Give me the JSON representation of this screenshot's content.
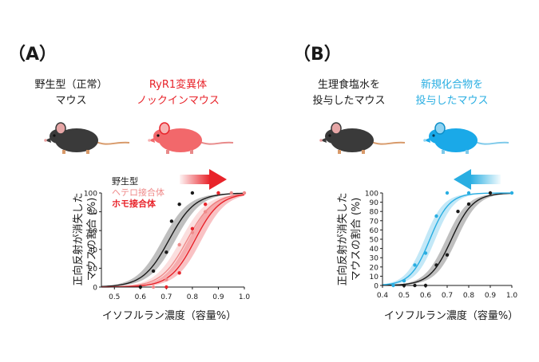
{
  "colors": {
    "wildtype": "#1a1a1a",
    "ryr1_label": "#e8232a",
    "hetero": "#ef8a8a",
    "homo": "#e8232a",
    "saline": "#1a1a1a",
    "compound": "#29aee2",
    "compound_fill": "#bfe3f3",
    "mouse_black": "#3a3a3a",
    "mouse_red": "#f2686b",
    "mouse_blue": "#1aa9e8",
    "arrow_red": "#e8232a",
    "arrow_blue": "#29aee2"
  },
  "panels": {
    "A": {
      "letter": "（A）",
      "mouse1_line1": "野生型（正常）",
      "mouse1_line2": "マウス",
      "mouse2_line1": "RyR1変異体",
      "mouse2_line2": "ノックインマウス",
      "icons": {
        "mouse1": "black-mouse-icon",
        "mouse2": "red-mouse-icon",
        "arrow": "right-arrow-icon"
      },
      "legend": [
        "野生型",
        "ヘテロ接合体",
        "ホモ接合体"
      ],
      "ylabel_line1": "正向反射が消失した",
      "ylabel_line2": "マウスの割合 (%)",
      "xlabel": "イソフルラン濃度（容量%）"
    },
    "B": {
      "letter": "（B）",
      "mouse1_line1": "生理食塩水を",
      "mouse1_line2": "投与したマウス",
      "mouse2_line1": "新規化合物を",
      "mouse2_line2": "投与したマウス",
      "icons": {
        "mouse1": "black-mouse-icon",
        "mouse2": "blue-mouse-icon",
        "arrow": "left-arrow-icon"
      },
      "ylabel_line1": "正向反射が消失した",
      "ylabel_line2": "マウスの割合 (%)",
      "xlabel": "イソフルラン濃度（容量%）"
    }
  },
  "chart_data": [
    {
      "type": "scatter",
      "panel": "A",
      "xlabel": "イソフルラン濃度（容量%）",
      "ylabel": "正向反射が消失したマウスの割合 (%)",
      "xlim": [
        0.45,
        1.0
      ],
      "ylim": [
        0,
        100
      ],
      "xticks": [
        0.5,
        0.6,
        0.7,
        0.8,
        0.9,
        1.0
      ],
      "xtick_labels": [
        "0.5",
        "0.6",
        "0.7",
        "0.8",
        "0.9",
        "1.0"
      ],
      "yticks": [
        0,
        20,
        40,
        60,
        80,
        100
      ],
      "ytick_labels": [
        "0",
        "20",
        "40",
        "60",
        "80",
        "100"
      ],
      "series": [
        {
          "name": "野生型",
          "color": "#1a1a1a",
          "ec50": 0.71,
          "slope": 0.05,
          "band": true,
          "points": [
            [
              0.6,
              0
            ],
            [
              0.65,
              17
            ],
            [
              0.7,
              37
            ],
            [
              0.72,
              70
            ],
            [
              0.75,
              88
            ],
            [
              0.8,
              100
            ]
          ]
        },
        {
          "name": "ヘテロ接合体",
          "color": "#ef8a8a",
          "ec50": 0.78,
          "slope": 0.05,
          "band": true,
          "points": [
            [
              0.65,
              0
            ],
            [
              0.7,
              8
            ],
            [
              0.75,
              45
            ],
            [
              0.8,
              58
            ],
            [
              0.85,
              80
            ],
            [
              0.9,
              100
            ],
            [
              1.0,
              100
            ]
          ]
        },
        {
          "name": "ホモ接合体",
          "color": "#e8232a",
          "ec50": 0.81,
          "slope": 0.048,
          "band": true,
          "points": [
            [
              0.7,
              0
            ],
            [
              0.75,
              15
            ],
            [
              0.8,
              62
            ],
            [
              0.85,
              88
            ],
            [
              0.9,
              100
            ]
          ]
        }
      ],
      "extra_point": {
        "color": "#ef8a8a",
        "x": 0.95,
        "y": 100
      }
    },
    {
      "type": "scatter",
      "panel": "B",
      "xlabel": "イソフルラン濃度（容量%）",
      "ylabel": "正向反射が消失したマウスの割合 (%)",
      "xlim": [
        0.4,
        1.0
      ],
      "ylim": [
        0,
        100
      ],
      "xticks": [
        0.4,
        0.5,
        0.6,
        0.7,
        0.8,
        0.9,
        1.0
      ],
      "xtick_labels": [
        "0.4",
        "0.5",
        "0.6",
        "0.7",
        "0.8",
        "0.9",
        "1.0"
      ],
      "yticks": [
        0,
        10,
        20,
        30,
        40,
        50,
        60,
        70,
        80,
        90,
        100
      ],
      "ytick_labels": [
        "0",
        "10",
        "20",
        "30",
        "40",
        "50",
        "60",
        "70",
        "80",
        "90",
        "100"
      ],
      "series": [
        {
          "name": "生理食塩水を投与したマウス",
          "color": "#1a1a1a",
          "ec50": 0.72,
          "slope": 0.05,
          "band": true,
          "points": [
            [
              0.5,
              0
            ],
            [
              0.55,
              0
            ],
            [
              0.6,
              0
            ],
            [
              0.65,
              22
            ],
            [
              0.7,
              33
            ],
            [
              0.75,
              80
            ],
            [
              0.8,
              88
            ],
            [
              0.9,
              100
            ]
          ]
        },
        {
          "name": "新規化合物を投与したマウス",
          "color": "#29aee2",
          "ec50": 0.62,
          "slope": 0.045,
          "band": true,
          "points": [
            [
              0.45,
              0
            ],
            [
              0.5,
              5
            ],
            [
              0.55,
              22
            ],
            [
              0.6,
              35
            ],
            [
              0.65,
              75
            ],
            [
              0.7,
              100
            ],
            [
              0.8,
              100
            ],
            [
              1.0,
              100
            ]
          ]
        }
      ]
    }
  ]
}
